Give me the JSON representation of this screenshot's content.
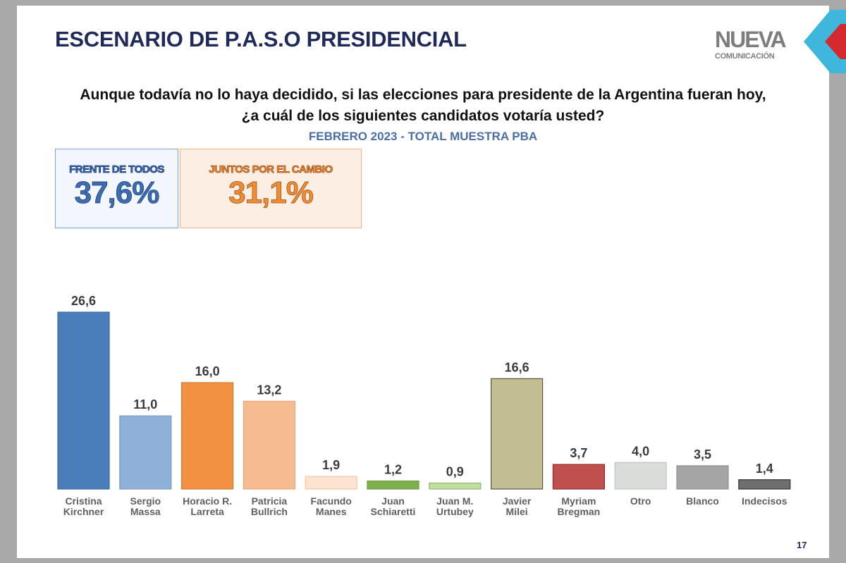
{
  "slide": {
    "title": "ESCENARIO DE P.A.S.O PRESIDENCIAL",
    "logo_main": "NUEVA",
    "logo_sub": "COMUNICACIÓN",
    "question_line1": "Aunque todavía no lo haya decidido, si las elecciones para presidente de la Argentina fueran hoy,",
    "question_line2": "¿a cuál de los siguientes candidatos votaría usted?",
    "subtitle": "FEBRERO 2023 - TOTAL MUESTRA PBA",
    "page_number": "17"
  },
  "coalitions": [
    {
      "label": "FRENTE DE TODOS",
      "value": "37,6%"
    },
    {
      "label": "JUNTOS POR EL CAMBIO",
      "value": "31,1%"
    }
  ],
  "chart_data": {
    "type": "bar",
    "title": "ESCENARIO DE P.A.S.O PRESIDENCIAL",
    "subtitle": "FEBRERO 2023 - TOTAL MUESTRA PBA",
    "xlabel": "",
    "ylabel": "",
    "ylim": [
      0,
      26.6
    ],
    "grid": false,
    "legend": "none",
    "categories": [
      [
        "Cristina",
        "Kirchner"
      ],
      [
        "Sergio",
        "Massa"
      ],
      [
        "Horacio R.",
        "Larreta"
      ],
      [
        "Patricia",
        "Bullrich"
      ],
      [
        "Facundo",
        "Manes"
      ],
      [
        "Juan",
        "Schiaretti"
      ],
      [
        "Juan M.",
        "Urtubey"
      ],
      [
        "Javier",
        "Milei"
      ],
      [
        "Myriam",
        "Bregman"
      ],
      [
        "Otro"
      ],
      [
        "Blanco"
      ],
      [
        "Indecisos"
      ]
    ],
    "values": [
      26.6,
      11.0,
      16.0,
      13.2,
      1.9,
      1.2,
      0.9,
      16.6,
      3.7,
      4.0,
      3.5,
      1.4
    ],
    "value_labels": [
      "26,6",
      "11,0",
      "16,0",
      "13,2",
      "1,9",
      "1,2",
      "0,9",
      "16,6",
      "3,7",
      "4,0",
      "3,5",
      "1,4"
    ],
    "colors": [
      "#4a7ebb",
      "#8fb0d8",
      "#f39143",
      "#f6bc90",
      "#fde3d0",
      "#7fae4d",
      "#c3dc9f",
      "#c3bd93",
      "#c0504d",
      "#d9dcd8",
      "#a5a5a5",
      "#6f6f6f"
    ],
    "borders": [
      "#3a6aa3",
      "#7a9cc6",
      "#d9782c",
      "#e8a878",
      "#f3c9a8",
      "#6a9a3c",
      "#8fb870",
      "#5a5638",
      "#8e2f2d",
      "#c2c6c1",
      "#8f8f8f",
      "#333333"
    ]
  }
}
